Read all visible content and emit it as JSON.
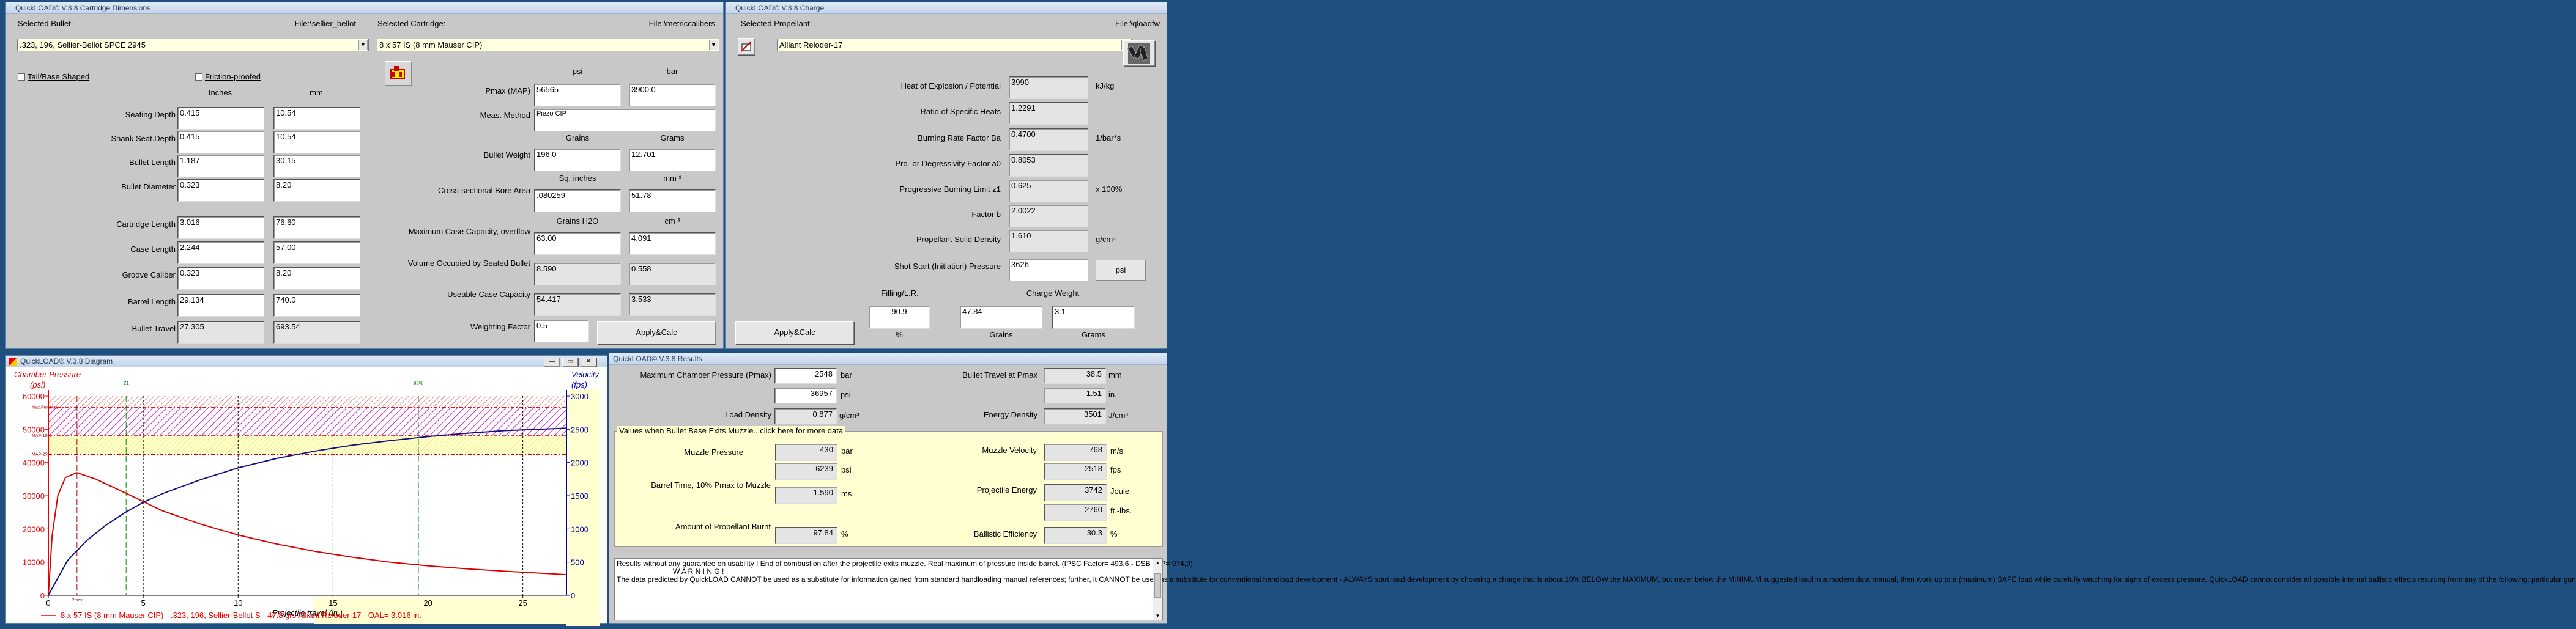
{
  "dims": {
    "title": "QuickLOAD© V.3.8 Cartridge Dimensions",
    "selected_bullet_label": "Selected Bullet:",
    "bullet_file": "File:\\sellier_bellot",
    "bullet": ".323, 196, Sellier-Bellot SPCE 2945",
    "selected_cartridge_label": "Selected Cartridge:",
    "cartridge_file": "File:\\metriccalibers",
    "cartridge": "8 x 57 IS (8 mm Mauser CIP)",
    "tail_base": "Tail/Base Shaped",
    "friction": "Friction-proofed",
    "col_inches": "Inches",
    "col_mm": "mm",
    "rows": [
      {
        "label": "Seating Depth",
        "in": "0.415",
        "mm": "10.54",
        "ro": false
      },
      {
        "label": "Shank Seat.Depth",
        "in": "0.415",
        "mm": "10.54",
        "ro": false
      },
      {
        "label": "Bullet Length",
        "in": "1.187",
        "mm": "30.15",
        "ro": false
      },
      {
        "label": "Bullet Diameter",
        "in": "0.323",
        "mm": "8.20",
        "ro": false
      },
      {
        "label": "Cartridge Length",
        "in": "3.016",
        "mm": "76.60",
        "ro": false
      },
      {
        "label": "Case Length",
        "in": "2.244",
        "mm": "57.00",
        "ro": false
      },
      {
        "label": "Groove Caliber",
        "in": "0.323",
        "mm": "8.20",
        "ro": false
      },
      {
        "label": "Barrel Length",
        "in": "29.134",
        "mm": "740.0",
        "ro": false
      },
      {
        "label": "Bullet Travel",
        "in": "27.305",
        "mm": "693.54",
        "ro": true
      }
    ],
    "psi": "psi",
    "bar": "bar",
    "pmax_label": "Pmax (MAP)",
    "pmax_psi": "56565",
    "pmax_bar": "3900.0",
    "meas_label": "Meas. Method",
    "meas": "Piezo CIP",
    "grains": "Grains",
    "grams": "Grams",
    "bw_label": "Bullet Weight",
    "bw_gr": "196.0",
    "bw_g": "12.701",
    "sq_in": "Sq. inches",
    "mm2": "mm ²",
    "bore_label": "Cross-sectional Bore Area",
    "bore_in": ".080259",
    "bore_mm": "51.78",
    "gr_h2o": "Grains H2O",
    "cm3": "cm ³",
    "mcc_label": "Maximum Case Capacity, overflow",
    "mcc_gr": "63.00",
    "mcc_cm": "4.091",
    "vosb_label": "Volume Occupied by Seated Bullet",
    "vosb_gr": "8.590",
    "vosb_cm": "0.558",
    "ucc_label": "Useable Case Capacity",
    "ucc_gr": "54.417",
    "ucc_cm": "3.533",
    "wf_label": "Weighting Factor",
    "wf": "0.5",
    "apply": "Apply&Calc"
  },
  "charge": {
    "title": "QuickLOAD© V.3.8 Charge",
    "sel_label": "Selected Propellant:",
    "file": "File:\\qloadfw",
    "propellant": "Alliant Reloder-17",
    "rows": [
      {
        "label": "Heat of Explosion / Potential",
        "val": "3990",
        "unit": "kJ/kg"
      },
      {
        "label": "Ratio of Specific Heats",
        "val": "1.2291",
        "unit": ""
      },
      {
        "label": "Burning Rate Factor  Ba",
        "val": "0.4700",
        "unit": "1/bar*s"
      },
      {
        "label": "Pro- or Degressivity Factor  a0",
        "val": "0.8053",
        "unit": ""
      },
      {
        "label": "Progressive Burning Limit z1",
        "val": "0.625",
        "unit": "x 100%"
      },
      {
        "label": "Factor  b",
        "val": "2.0022",
        "unit": ""
      },
      {
        "label": "Propellant Solid Density",
        "val": "1.610",
        "unit": "g/cm³"
      }
    ],
    "ss_label": "Shot Start (Initiation) Pressure",
    "ss": "3626",
    "ss_unit": "psi",
    "fill_label": "Filling/L.R.",
    "cw_label": "Charge Weight",
    "fill": "90.9",
    "cw_gr": "47.84",
    "cw_g": "3.1",
    "pct": "%",
    "grains": "Grains",
    "grams": "Grams",
    "apply": "Apply&Calc"
  },
  "diagram": {
    "title": "QuickLOAD© V.3.8 Diagram",
    "left_title": "Chamber Pressure",
    "left_unit": "(psi)",
    "right_title": "Velocity",
    "right_unit": "(fps)",
    "xlabel": "Projectile travel (in.)",
    "z1": "Z1",
    "p95": "95%",
    "maxp": "Max.Pressure",
    "map15": "MAP-15%",
    "map25": "MAP-25%",
    "pmax": "Pmax",
    "legend": "8 x 57 IS (8 mm Mauser CIP) - .323, 196, Sellier-Bellot S - 47.8 grs Alliant Reloder-17 - OAL= 3.016 in."
  },
  "chart_data": {
    "type": "line",
    "x_ticks": [
      0,
      5,
      10,
      15,
      20,
      25
    ],
    "y_left_ticks": [
      0,
      10000,
      20000,
      30000,
      40000,
      50000,
      60000
    ],
    "y_right_ticks": [
      0,
      500,
      1000,
      1500,
      2000,
      2500,
      3000
    ],
    "xlim": [
      0,
      27.3
    ],
    "ylim_left": [
      0,
      60000
    ],
    "ylim_right": [
      0,
      3000
    ],
    "series": [
      {
        "name": "Chamber Pressure",
        "axis": "left",
        "color": "#e00000",
        "x": [
          0,
          0.2,
          0.5,
          0.9,
          1.5,
          2.5,
          4,
          6,
          8,
          10,
          12,
          14,
          16,
          18,
          20,
          22,
          24,
          27.3
        ],
        "y": [
          0,
          18000,
          30000,
          35500,
          36957,
          35000,
          31000,
          25500,
          21500,
          18200,
          15500,
          13300,
          11500,
          10000,
          8900,
          8000,
          7300,
          6239
        ]
      },
      {
        "name": "Velocity",
        "axis": "right",
        "color": "#101080",
        "x": [
          0,
          1,
          2,
          3,
          4,
          5,
          6,
          8,
          10,
          12,
          14,
          16,
          18,
          20,
          22,
          24,
          27.3
        ],
        "y": [
          0,
          520,
          820,
          1050,
          1240,
          1400,
          1530,
          1740,
          1920,
          2060,
          2170,
          2260,
          2330,
          2390,
          2440,
          2480,
          2518
        ]
      }
    ],
    "bands": {
      "max_pressure": 56565,
      "map15": 48080,
      "map25": 42424
    },
    "markers": {
      "pmax": 1.51,
      "z1": 4.1,
      "p95": 19.5
    }
  },
  "results": {
    "title": "QuickLOAD© V.3.8 Results",
    "mcp_label": "Maximum Chamber Pressure (Pmax)",
    "mcp_bar": "2548",
    "bar": "bar",
    "mcp_psi": "36957",
    "psi": "psi",
    "btp_label": "Bullet Travel at Pmax",
    "btp_mm": "38.5",
    "mm": "mm",
    "btp_in": "1.51",
    "in": "in.",
    "ld_label": "Load Density",
    "ld": "0.877",
    "gcm": "g/cm³",
    "ed_label": "Energy Density",
    "ed": "3501",
    "jcm": "J/cm³",
    "group": "Values when Bullet Base Exits Muzzle...click here for more data",
    "mp_label": "Muzzle Pressure",
    "mp_bar": "430",
    "mp_psi": "6239",
    "mv_label": "Muzzle Velocity",
    "mv_ms": "768",
    "ms": "m/s",
    "mv_fps": "2518",
    "fps": "fps",
    "bt_label": "Barrel Time, 10% Pmax to Muzzle",
    "bt": "1.590",
    "msec": "ms",
    "pe_label": "Projectile Energy",
    "pe_j": "3742",
    "joule": "Joule",
    "pe_ft": "2760",
    "ftlbs": "ft.-lbs.",
    "apb_label": "Amount of Propellant Burnt",
    "apb": "97.84",
    "pct": "%",
    "be_label": "Ballistic Efficiency",
    "be": "30.3",
    "note": "Results without any guarantee on usability !  End of combustion after the projectile exits muzzle.  Real maximum of pressure inside barrel.  (IPSC Factor= 493,6 - DSB MIP= 974,9)",
    "warn": "W A R N I N G !",
    "warn_text": "The data predicted by QuickLOAD CANNOT be used as a substitute for information gained from standard handloading manual references; further, it CANNOT be used as a substitute for conventional handload development - ALWAYS start load development by choosing a charge that is about 10% BELOW the MAXIMUM, but never below the MINIMUM suggested load in a modern data manual, then work up to a (maximum) SAFE load while carefully watching for signs of excess pressure. QuickLOAD cannot consider all possible internal ballistic effects resulting from any of the following: particular gun"
  }
}
